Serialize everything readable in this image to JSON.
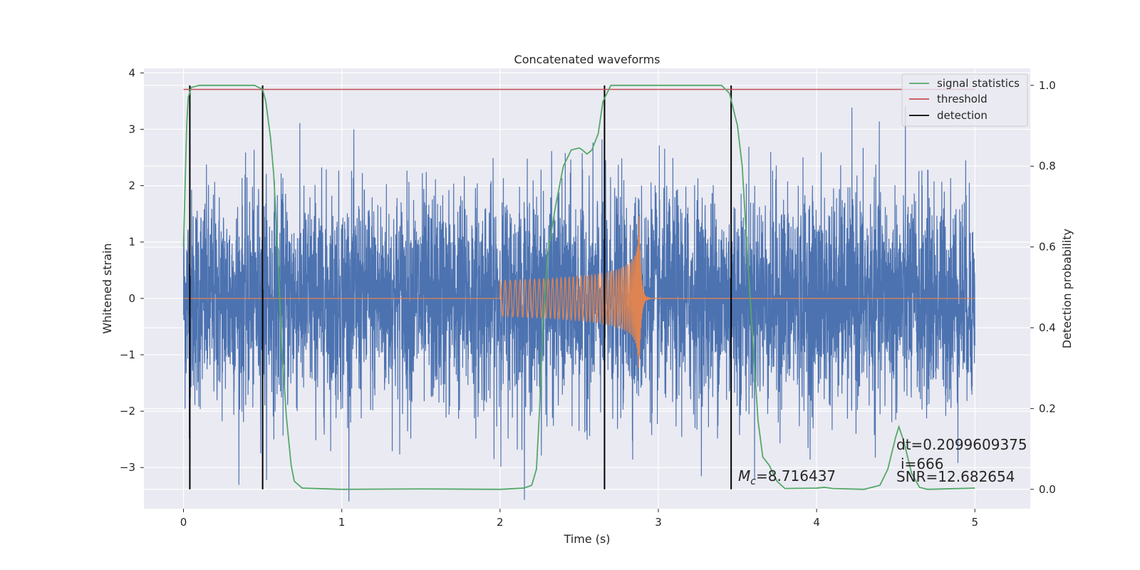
{
  "chart_data": {
    "type": "line",
    "title": "Concatenated waveforms",
    "xlabel": "Time (s)",
    "ylabel": "Whitened strain",
    "y2label": "Detection probability",
    "xlim": [
      -0.25,
      5.35
    ],
    "ylim": [
      -3.73,
      4.08
    ],
    "y2lim": [
      -0.048,
      1.042
    ],
    "xticks": [
      0,
      1,
      2,
      3,
      4,
      5
    ],
    "yticks": [
      -3,
      -2,
      -1,
      0,
      1,
      2,
      3,
      4
    ],
    "y2ticks": [
      0.0,
      0.2,
      0.4,
      0.6,
      0.8,
      1.0
    ],
    "y2ticklabels": [
      "0.0",
      "0.2",
      "0.4",
      "0.6",
      "0.8",
      "1.0"
    ],
    "yticklabels": [
      "−3",
      "−2",
      "−1",
      "0",
      "1",
      "2",
      "3",
      "4"
    ],
    "grid": true,
    "legend_position": "top-right",
    "series": [
      {
        "name": "signal statistics",
        "color": "#55a868",
        "axis": "right",
        "points": [
          [
            0.0,
            0.6
          ],
          [
            0.01,
            0.75
          ],
          [
            0.02,
            0.9
          ],
          [
            0.03,
            0.97
          ],
          [
            0.05,
            0.995
          ],
          [
            0.1,
            1.0
          ],
          [
            0.45,
            1.0
          ],
          [
            0.5,
            0.99
          ],
          [
            0.52,
            0.96
          ],
          [
            0.55,
            0.87
          ],
          [
            0.57,
            0.78
          ],
          [
            0.6,
            0.55
          ],
          [
            0.62,
            0.35
          ],
          [
            0.65,
            0.18
          ],
          [
            0.68,
            0.06
          ],
          [
            0.7,
            0.02
          ],
          [
            0.75,
            0.003
          ],
          [
            1.0,
            0.0
          ],
          [
            1.5,
            0.001
          ],
          [
            2.0,
            0.0
          ],
          [
            2.15,
            0.003
          ],
          [
            2.2,
            0.01
          ],
          [
            2.23,
            0.05
          ],
          [
            2.25,
            0.2
          ],
          [
            2.27,
            0.4
          ],
          [
            2.3,
            0.58
          ],
          [
            2.35,
            0.7
          ],
          [
            2.4,
            0.8
          ],
          [
            2.45,
            0.84
          ],
          [
            2.5,
            0.845
          ],
          [
            2.52,
            0.84
          ],
          [
            2.55,
            0.83
          ],
          [
            2.58,
            0.84
          ],
          [
            2.62,
            0.88
          ],
          [
            2.65,
            0.96
          ],
          [
            2.7,
            1.0
          ],
          [
            3.4,
            1.0
          ],
          [
            3.45,
            0.98
          ],
          [
            3.5,
            0.9
          ],
          [
            3.53,
            0.8
          ],
          [
            3.56,
            0.6
          ],
          [
            3.6,
            0.35
          ],
          [
            3.63,
            0.17
          ],
          [
            3.66,
            0.08
          ],
          [
            3.7,
            0.06
          ],
          [
            3.75,
            0.02
          ],
          [
            3.8,
            0.002
          ],
          [
            4.0,
            0.003
          ],
          [
            4.05,
            0.005
          ],
          [
            4.1,
            0.002
          ],
          [
            4.3,
            0.0
          ],
          [
            4.4,
            0.01
          ],
          [
            4.45,
            0.05
          ],
          [
            4.5,
            0.13
          ],
          [
            4.52,
            0.155
          ],
          [
            4.55,
            0.12
          ],
          [
            4.6,
            0.04
          ],
          [
            4.65,
            0.005
          ],
          [
            4.7,
            0.0
          ],
          [
            5.0,
            0.003
          ]
        ]
      },
      {
        "name": "threshold",
        "color": "#c44e52",
        "axis": "right",
        "value": 0.99,
        "x": [
          0,
          5
        ]
      },
      {
        "name": "detection",
        "color": "#000000",
        "axis": "right",
        "x": [
          0.04,
          0.5,
          2.66,
          3.46
        ]
      }
    ],
    "noise": {
      "color": "#4c72b0",
      "x_start": 0,
      "x_end": 5
    },
    "injected_signal": {
      "color": "#dd8452",
      "x_start": 2.0,
      "x_end": 2.88
    },
    "annotations": {
      "mc_symbol": "M",
      "mc_subscript": "c",
      "mc_value": "=8.716437",
      "dt": "dt=0.2099609375",
      "i": "i=666",
      "snr": "SNR=12.682654"
    }
  }
}
